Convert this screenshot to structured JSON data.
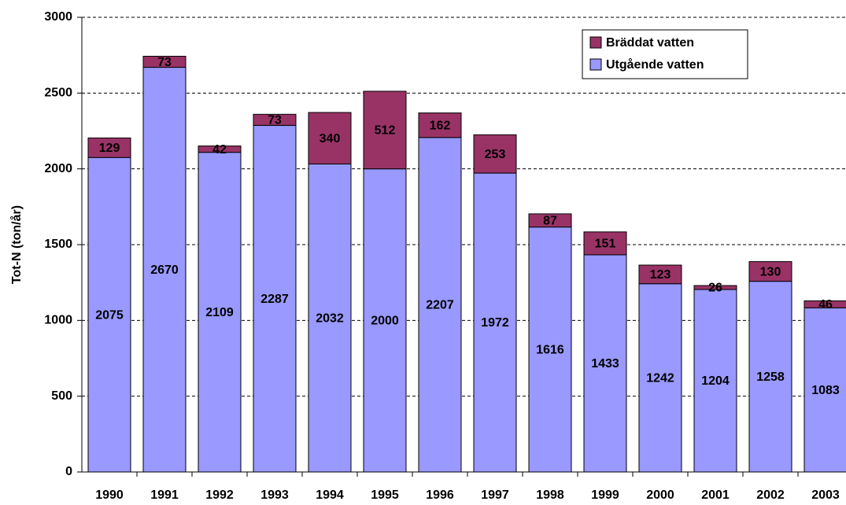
{
  "chart_data": {
    "type": "stacked_bar",
    "y_label": "Tot-N (ton/år)",
    "categories": [
      "1990",
      "1991",
      "1992",
      "1993",
      "1994",
      "1995",
      "1996",
      "1997",
      "1998",
      "1999",
      "2000",
      "2001",
      "2002",
      "2003"
    ],
    "series": [
      {
        "name": "Utgående vatten",
        "color": "#9999ff",
        "values": [
          2075,
          2670,
          2109,
          2287,
          2032,
          2000,
          2207,
          1972,
          1616,
          1433,
          1242,
          1204,
          1258,
          1083
        ]
      },
      {
        "name": "Bräddat vatten",
        "color": "#993366",
        "values": [
          129,
          73,
          42,
          73,
          340,
          512,
          162,
          253,
          87,
          151,
          123,
          26,
          130,
          46
        ]
      }
    ],
    "ylim": [
      0,
      3000
    ],
    "yticks": [
      0,
      500,
      1000,
      1500,
      2000,
      2500,
      3000
    ],
    "grid": true,
    "legend": "upper right"
  }
}
